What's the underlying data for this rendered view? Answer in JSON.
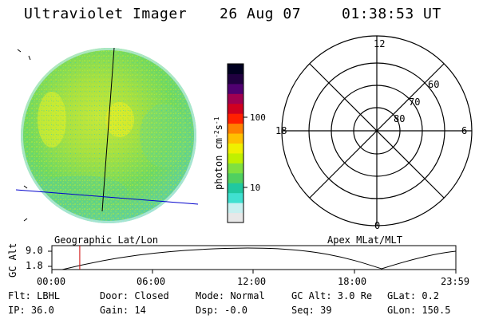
{
  "header": {
    "instrument": "Ultraviolet Imager",
    "date": "26 Aug 07",
    "time": "01:38:53 UT"
  },
  "colorbar": {
    "label_html": "photon cm<tspan baseline-shift='super' font-size='8'>-2</tspan>s<tspan baseline-shift='super' font-size='8'>-1</tspan>",
    "label": "photon cm-2s-1",
    "tick_100": "100",
    "tick_10": "10",
    "colors": [
      "#e8e8e8",
      "#c8f0f0",
      "#40e0d0",
      "#20c8a0",
      "#50d060",
      "#80e040",
      "#c0f000",
      "#f0f000",
      "#ffc000",
      "#ff8000",
      "#ff2000",
      "#d00020",
      "#a00050",
      "#500070",
      "#200040",
      "#000020"
    ]
  },
  "polar": {
    "label_top": "12",
    "label_bottom": "0",
    "label_left": "18",
    "label_right": "6",
    "ring_60": "60",
    "ring_70": "70",
    "ring_80": "80"
  },
  "orbit": {
    "left_title": "Geographic Lat/Lon",
    "right_title": "Apex MLat/MLT",
    "axis_label": "GC Alt",
    "y_top": "9.0",
    "y_bottom": "1.8",
    "x_ticks": [
      "00:00",
      "06:00",
      "12:00",
      "18:00",
      "23:59"
    ],
    "marker_time_fraction": 0.069
  },
  "info": {
    "flt": "Flt: LBHL",
    "ip": "IP: 36.0",
    "door": "Door: Closed",
    "gain": "Gain: 14",
    "mode": "Mode: Normal",
    "dsp": "Dsp:  -0.0",
    "gcalt": "GC Alt: 3.0 Re",
    "seq": "Seq: 39",
    "glat": "GLat:  0.2",
    "glon": "GLon: 150.5"
  }
}
